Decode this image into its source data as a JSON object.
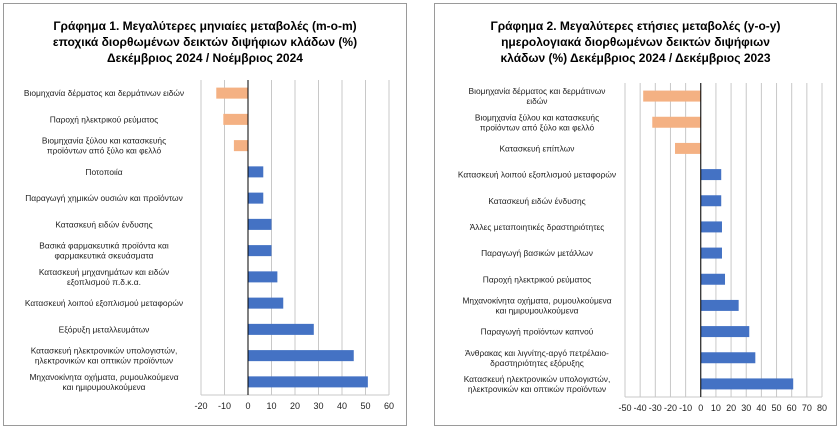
{
  "chart_data": [
    {
      "type": "bar",
      "orientation": "horizontal",
      "title": "Γράφημα 1. Μεγαλύτερες μηνιαίες μεταβολές (m-o-m) εποχικά διορθωμένων δεικτών διψήφιων κλάδων (%) Δεκέμβριος 2024 / Νοέμβριος 2024",
      "title_lines": [
        "Γράφημα 1. Μεγαλύτερες μηνιαίες μεταβολές (m-o-m)",
        "εποχικά διορθωμένων δεικτών διψήφιων κλάδων (%)",
        "Δεκέμβριος 2024 / Νοέμβριος 2024"
      ],
      "categories": [
        "Βιομηχανία δέρματος και δερμάτινων ειδών",
        "Παροχή ηλεκτρικού ρεύματος",
        "Βιομηχανία ξύλου και κατασκευής προϊόντων από ξύλο και φελλό",
        "Ποτοποιία",
        "Παραγωγή χημικών ουσιών και προϊόντων",
        "Κατασκευή ειδών ένδυσης",
        "Βασικά φαρμακευτικά προϊόντα και φαρμακευτικά σκευάσματα",
        "Κατασκευή μηχανημάτων και ειδών εξοπλισμού π.δ.κ.α.",
        "Κατασκευή λοιπού εξοπλισμού μεταφορών",
        "Εξόρυξη μεταλλευμάτων",
        "Κατασκευή ηλεκτρονικών υπολογιστών, ηλεκτρονικών και οπτικών προϊόντων",
        "Μηχανοκίνητα οχήματα, ρυμουλκούμενα και ημιρυμουλκούμενα"
      ],
      "category_lines": [
        [
          "Βιομηχανία δέρματος και δερμάτινων ειδών"
        ],
        [
          "Παροχή ηλεκτρικού ρεύματος"
        ],
        [
          "Βιομηχανία ξύλου και κατασκευής",
          "προϊόντων από ξύλο και φελλό"
        ],
        [
          "Ποτοποιία"
        ],
        [
          "Παραγωγή χημικών ουσιών και προϊόντων"
        ],
        [
          "Κατασκευή ειδών ένδυσης"
        ],
        [
          "Βασικά φαρμακευτικά προϊόντα και",
          "φαρμακευτικά σκευάσματα"
        ],
        [
          "Κατασκευή μηχανημάτων και ειδών",
          "εξοπλισμού π.δ.κ.α."
        ],
        [
          "Κατασκευή λοιπού εξοπλισμού μεταφορών"
        ],
        [
          "Εξόρυξη μεταλλευμάτων"
        ],
        [
          "Κατασκευή ηλεκτρονικών υπολογιστών,",
          "ηλεκτρονικών και οπτικών προϊόντων"
        ],
        [
          "Μηχανοκίνητα οχήματα, ρυμουλκούμενα",
          "και ημιρυμουλκούμενα"
        ]
      ],
      "values": [
        -13.5,
        -10.5,
        -6.0,
        6.5,
        6.5,
        10.0,
        10.0,
        12.5,
        15.0,
        28.0,
        45.0,
        51.0
      ],
      "xlim": [
        -20,
        60
      ],
      "xticks": [
        -20,
        -10,
        0,
        10,
        20,
        30,
        40,
        50,
        60
      ],
      "grid": true,
      "colors": {
        "positive": "#4472C4",
        "negative": "#F4B183"
      }
    },
    {
      "type": "bar",
      "orientation": "horizontal",
      "title": "Γράφημα 2. Μεγαλύτερες ετήσιες μεταβολές (y-o-y) ημερολογιακά διορθωμένων δεικτών διψήφιων κλάδων (%) Δεκέμβριος 2024 / Δεκέμβριος 2023",
      "title_lines": [
        "Γράφημα 2. Μεγαλύτερες ετήσιες μεταβολές (y-o-y)",
        "ημερολογιακά διορθωμένων δεικτών διψήφιων",
        "κλάδων (%) Δεκέμβριος 2024 / Δεκέμβριος  2023"
      ],
      "categories": [
        "Βιομηχανία δέρματος και δερμάτινων ειδών",
        "Βιομηχανία ξύλου και κατασκευής προϊόντων από ξύλο και φελλό",
        "Κατασκευή επίπλων",
        "Κατασκευή λοιπού εξοπλισμού μεταφορών",
        "Κατασκευή ειδών ένδυσης",
        "Άλλες μεταποιητικές δραστηριότητες",
        "Παραγωγή βασικών μετάλλων",
        "Παροχή ηλεκτρικού ρεύματος",
        "Μηχανοκίνητα οχήματα, ρυμουλκούμενα και ημιρυμουλκούμενα",
        "Παραγωγή προϊόντων καπνού",
        "Άνθρακας και λιγνίτης-αργό πετρέλαιο-δραστηριότητες εξόρυξης",
        "Κατασκευή ηλεκτρονικών υπολογιστών, ηλεκτρονικών και οπτικών προϊόντων"
      ],
      "category_lines": [
        [
          "Βιομηχανία δέρματος και δερμάτινων",
          "ειδών"
        ],
        [
          "Βιομηχανία ξύλου και κατασκευής",
          "προϊόντων από ξύλο και φελλό"
        ],
        [
          "Κατασκευή επίπλων"
        ],
        [
          "Κατασκευή λοιπού εξοπλισμού μεταφορών"
        ],
        [
          "Κατασκευή ειδών ένδυσης"
        ],
        [
          "Άλλες μεταποιητικές δραστηριότητες"
        ],
        [
          "Παραγωγή βασικών μετάλλων"
        ],
        [
          "Παροχή ηλεκτρικού ρεύματος"
        ],
        [
          "Μηχανοκίνητα οχήματα, ρυμουλκούμενα",
          "και ημιρυμουλκούμενα"
        ],
        [
          "Παραγωγή προϊόντων καπνού"
        ],
        [
          "Άνθρακας και λιγνίτης-αργό πετρέλαιο-",
          "δραστηριότητες εξόρυξης"
        ],
        [
          "Κατασκευή ηλεκτρονικών υπολογιστών,",
          "ηλεκτρονικών και οπτικών προϊόντων"
        ]
      ],
      "values": [
        -38.0,
        -32.0,
        -17.0,
        13.5,
        13.5,
        14.0,
        14.0,
        16.0,
        25.0,
        32.0,
        36.0,
        61.0
      ],
      "xlim": [
        -50,
        80
      ],
      "xticks": [
        -50,
        -40,
        -30,
        -20,
        -10,
        0,
        10,
        20,
        30,
        40,
        50,
        60,
        70,
        80
      ],
      "grid": true,
      "colors": {
        "positive": "#4472C4",
        "negative": "#F4B183"
      }
    }
  ]
}
